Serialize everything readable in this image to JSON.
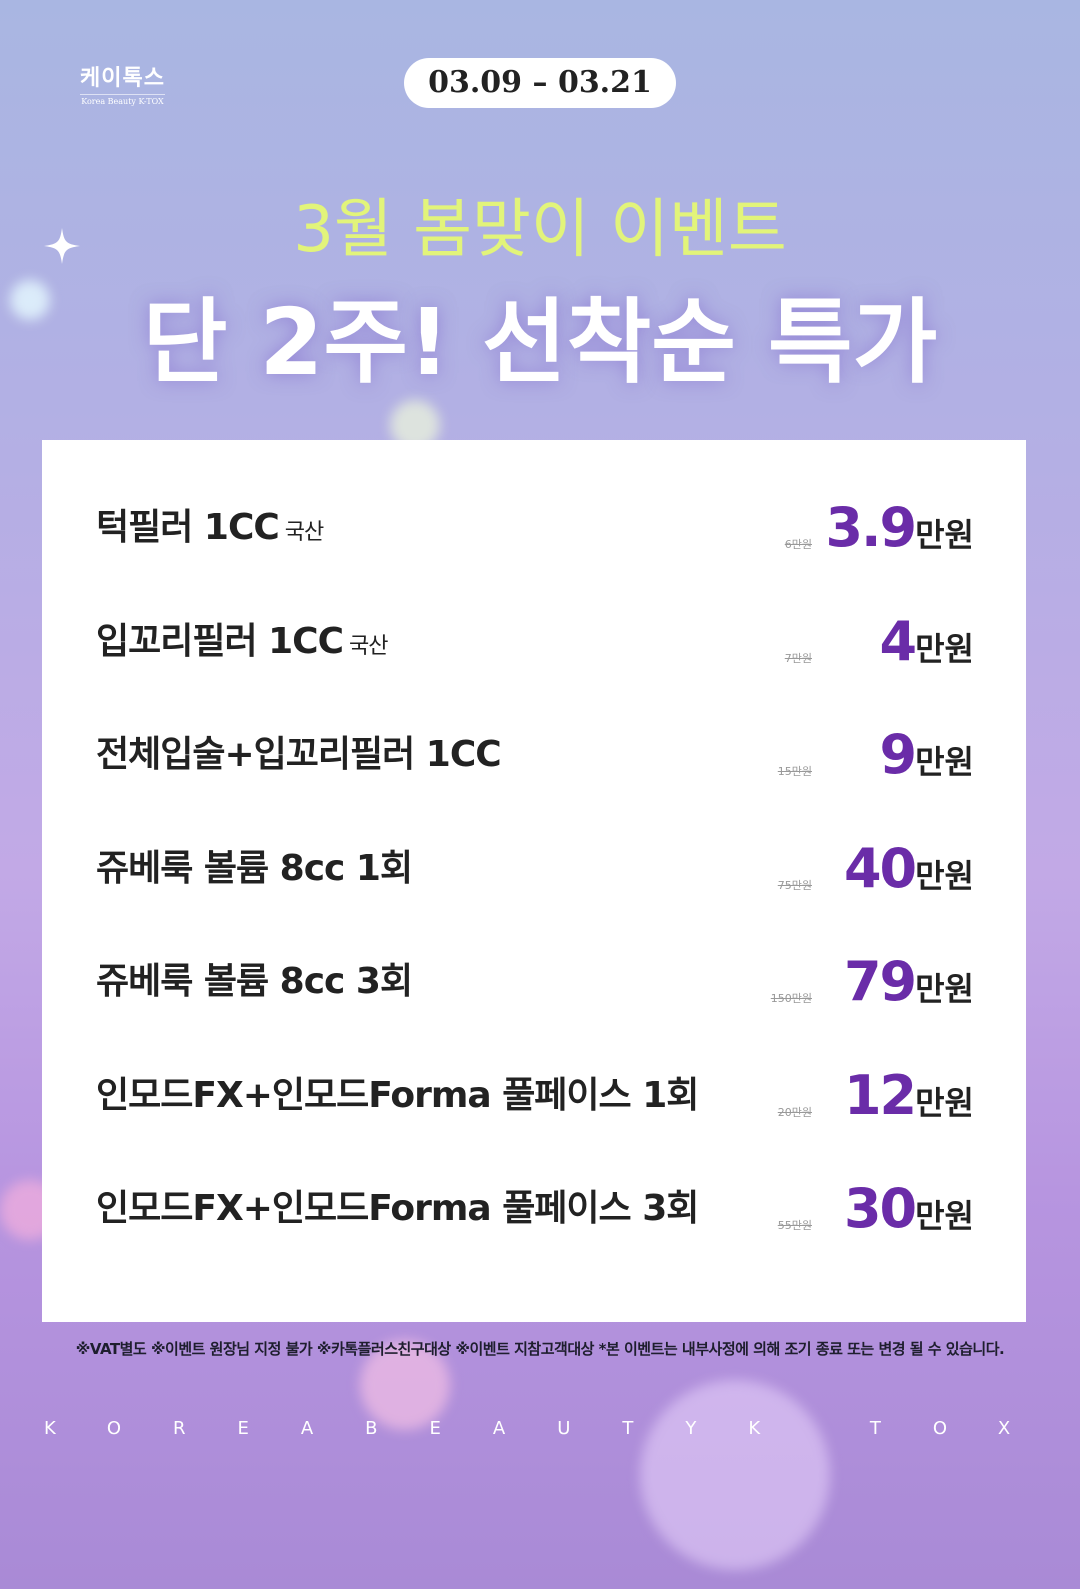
{
  "header": {
    "logo": "케이톡스",
    "logo_sub": "Korea Beauty K-TOX",
    "date": "03.09 – 03.21"
  },
  "title": "3월 봄맞이 이벤트",
  "headline": "단 2주! 선착순 특가",
  "items": [
    {
      "name": "턱필러 1CC",
      "tag": "국산",
      "original": "6만원",
      "price": "3.9",
      "unit": "만원"
    },
    {
      "name": "입꼬리필러 1CC",
      "tag": "국산",
      "original": "7만원",
      "price": "4",
      "unit": "만원"
    },
    {
      "name": "전체입술+입꼬리필러 1CC",
      "original": "15만원",
      "price": "9",
      "unit": "만원"
    },
    {
      "name": "쥬베룩 볼륨 8cc 1회",
      "original": "75만원",
      "price": "40",
      "unit": "만원"
    },
    {
      "name": "쥬베룩 볼륨 8cc 3회",
      "original": "150만원",
      "price": "79",
      "unit": "만원"
    },
    {
      "name": "인모드FX+인모드Forma 풀페이스 1회",
      "original": "20만원",
      "price": "12",
      "unit": "만원"
    },
    {
      "name": "인모드FX+인모드Forma 풀페이스 3회",
      "original": "55만원",
      "price": "30",
      "unit": "만원"
    }
  ],
  "footnote": "※VAT별도 ※이벤트 원장님 지정 불가 ※카톡플러스친구대상 ※이벤트 지참고객대상 *본 이벤트는 내부사정에 의해 조기 종료 또는 변경 될 수 있습니다.",
  "footer": "KOREABEAUTYK TOX"
}
